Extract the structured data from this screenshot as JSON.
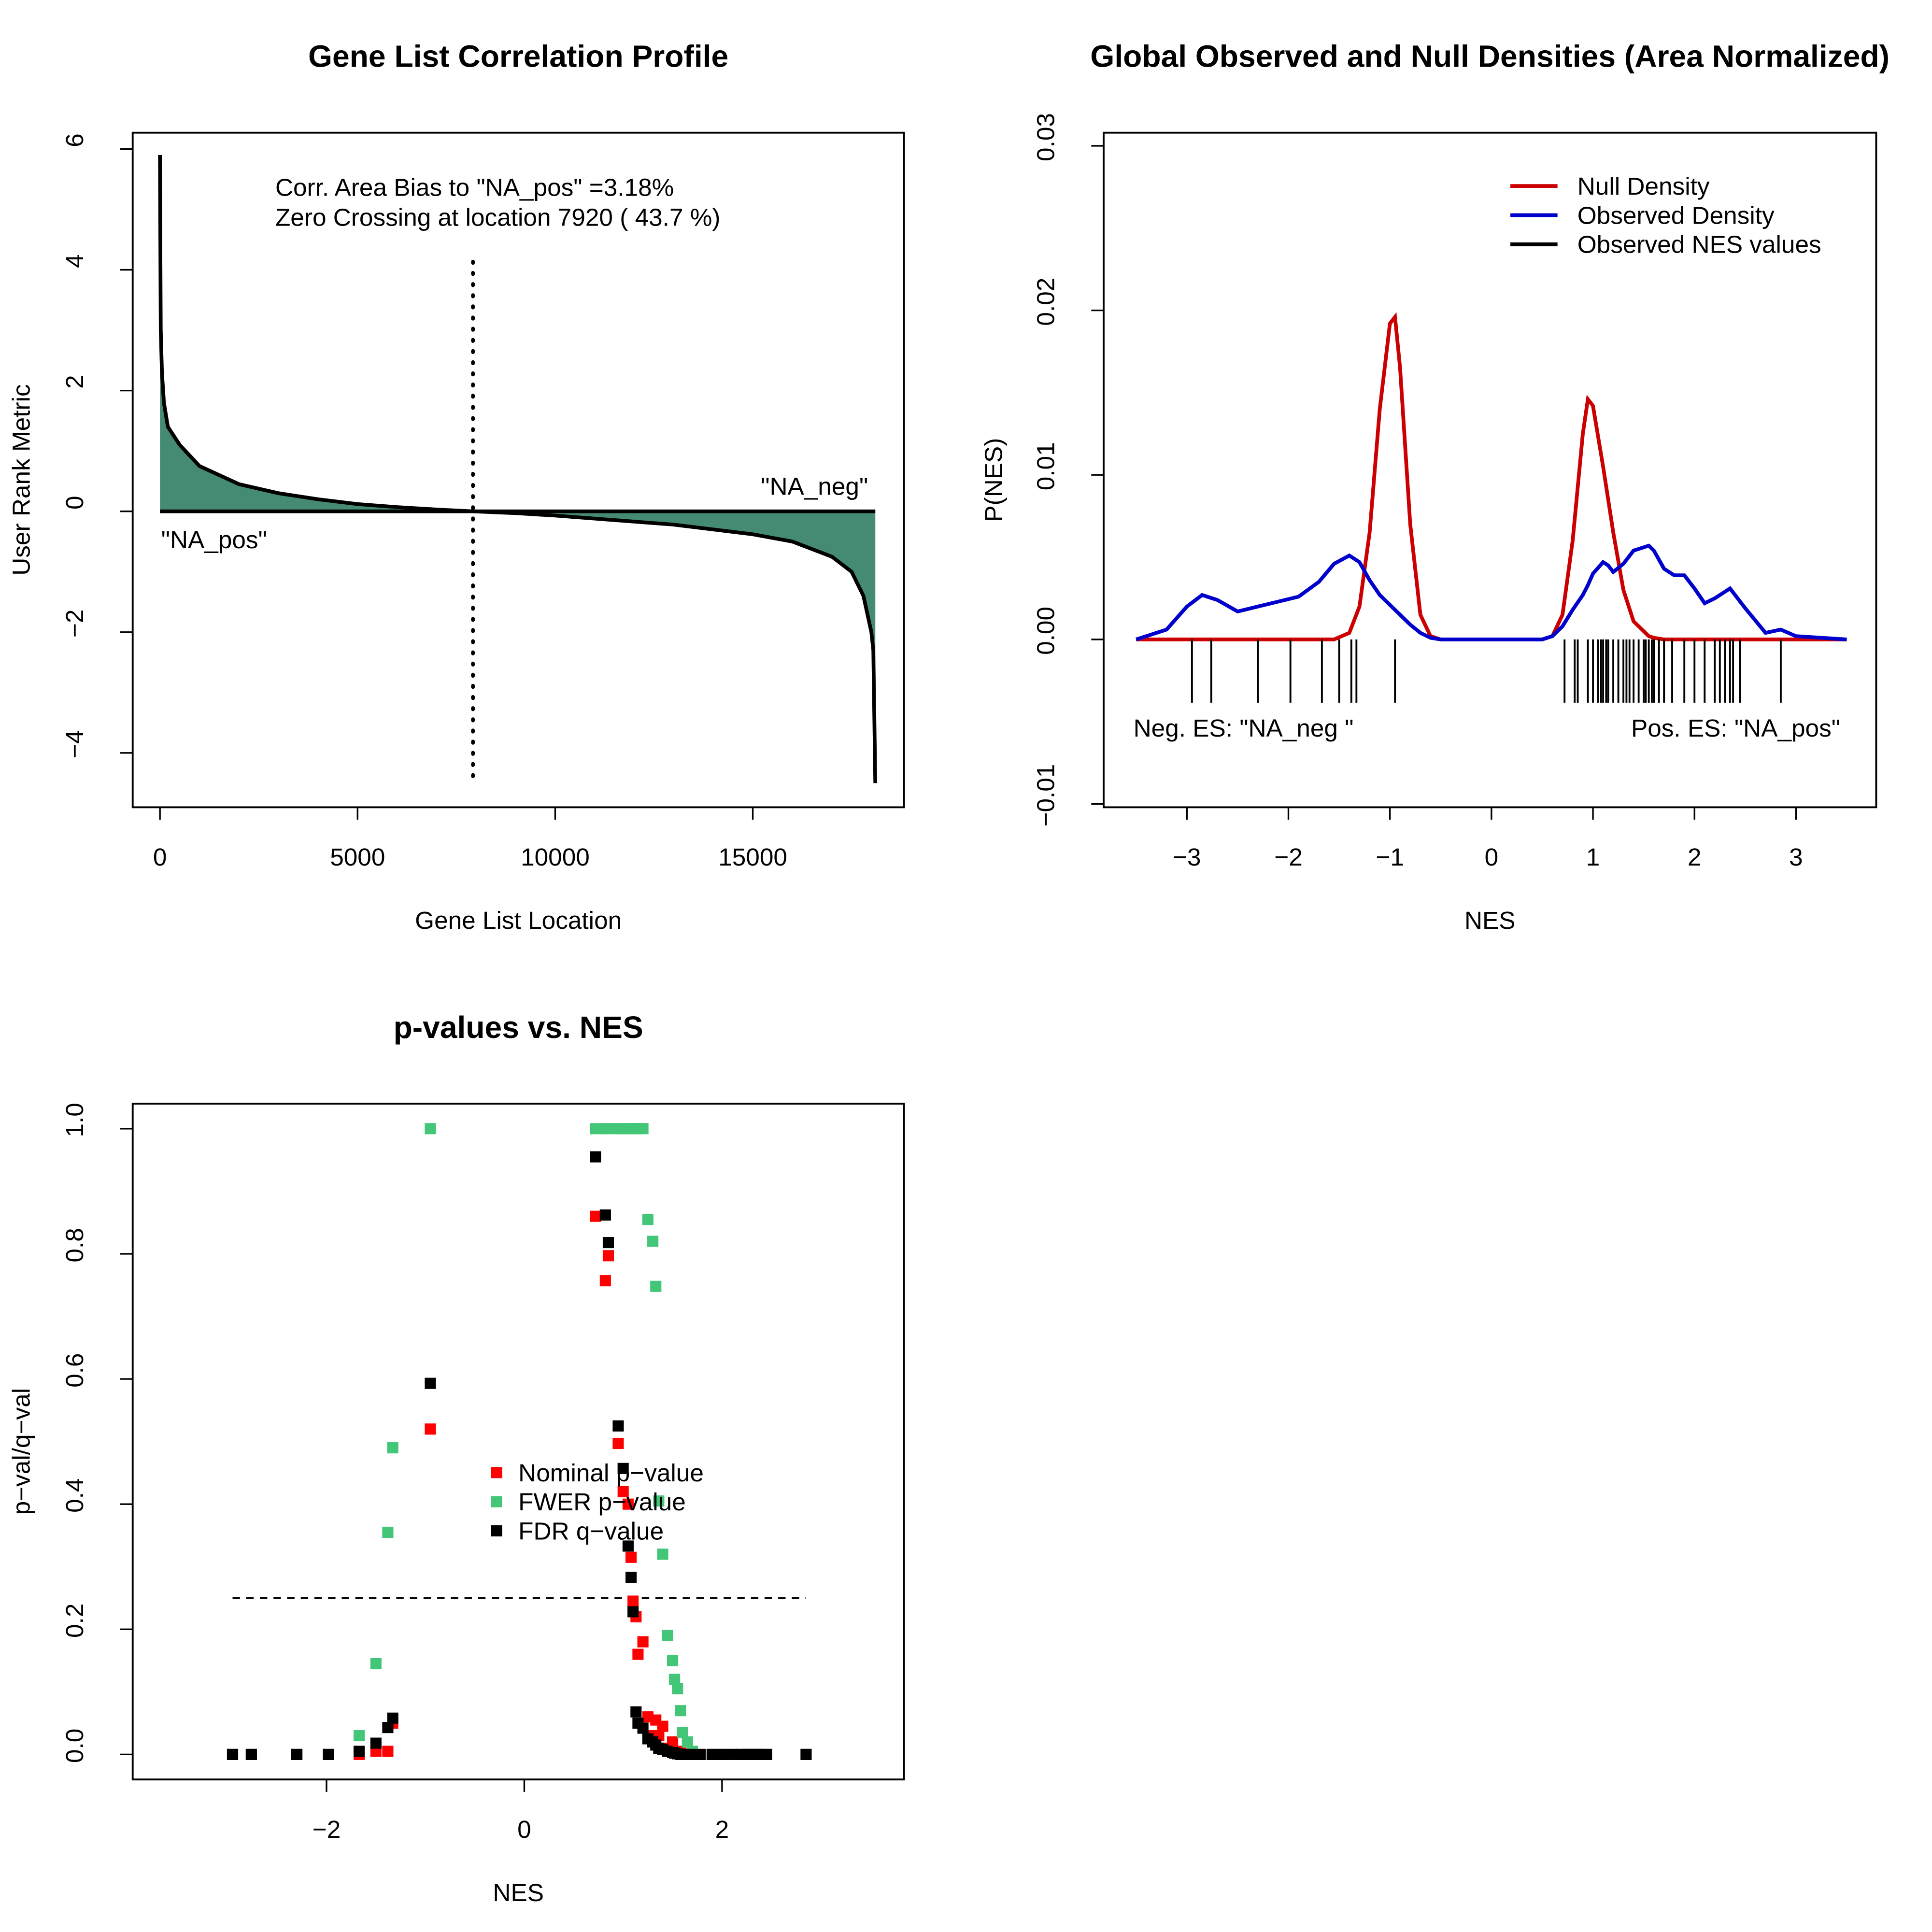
{
  "chart_data": [
    {
      "type": "area",
      "title": "Gene List Correlation Profile",
      "x_label": "Gene List Location",
      "y_label": "User Rank Metric",
      "x": [
        0,
        20,
        50,
        100,
        200,
        500,
        1000,
        2000,
        3000,
        4000,
        5000,
        6000,
        7000,
        7920,
        9000,
        10000,
        11000,
        12000,
        13000,
        14000,
        15000,
        16000,
        17000,
        17500,
        17800,
        18000,
        18050,
        18100
      ],
      "values": [
        5.9,
        3.0,
        2.3,
        1.8,
        1.4,
        1.1,
        0.75,
        0.45,
        0.3,
        0.2,
        0.12,
        0.07,
        0.03,
        0,
        -0.03,
        -0.07,
        -0.12,
        -0.17,
        -0.22,
        -0.3,
        -0.38,
        -0.5,
        -0.75,
        -1.0,
        -1.4,
        -2.0,
        -2.3,
        -4.5
      ],
      "color": "#458b74",
      "line_color": "#000000",
      "vline": 7920,
      "xlim": [
        -690,
        18826
      ],
      "ylim": [
        -4.9,
        6.27
      ],
      "xticks": [
        0,
        5000,
        10000,
        15000
      ],
      "yticks": [
        {
          "value": -4,
          "label": "−4"
        },
        {
          "value": -2,
          "label": "−2"
        },
        0,
        2,
        4,
        6
      ],
      "annotations": [
        "Corr. Area Bias to \"NA_pos\" =3.18%",
        "Zero Crossing at location  7920  ( 43.7  %)",
        "\"NA_neg\"",
        "\"NA_pos\""
      ]
    },
    {
      "type": "line",
      "title": "Global Observed and Null Densities (Area Normalized)",
      "x_label": "NES",
      "y_label": "P(NES)",
      "x": [
        -3.5,
        -3.2,
        -3.0,
        -2.85,
        -2.7,
        -2.5,
        -2.3,
        -2.1,
        -1.9,
        -1.7,
        -1.55,
        -1.4,
        -1.3,
        -1.2,
        -1.1,
        -1.0,
        -0.95,
        -0.9,
        -0.8,
        -0.7,
        -0.6,
        -0.5,
        -0.3,
        0,
        0.3,
        0.5,
        0.6,
        0.7,
        0.8,
        0.9,
        0.95,
        1.0,
        1.1,
        1.15,
        1.2,
        1.3,
        1.4,
        1.55,
        1.6,
        1.7,
        1.8,
        1.9,
        2.0,
        2.1,
        2.2,
        2.35,
        2.5,
        2.7,
        2.85,
        3.0,
        3.5
      ],
      "series": [
        {
          "name": "Null Density",
          "color": "#cc0000",
          "values": [
            0,
            0,
            0,
            0,
            0,
            0,
            0,
            0,
            0,
            0,
            0,
            0.0004,
            0.002,
            0.0065,
            0.014,
            0.0192,
            0.0196,
            0.0165,
            0.007,
            0.0015,
            0.0002,
            0,
            0,
            0,
            0,
            0,
            0.0002,
            0.0015,
            0.006,
            0.0125,
            0.0146,
            0.0142,
            0.0105,
            0.0085,
            0.0065,
            0.003,
            0.0011,
            0.0002,
            0.0001,
            0,
            0,
            0,
            0,
            0,
            0,
            0,
            0,
            0,
            0,
            0,
            0
          ]
        },
        {
          "name": "Observed Density",
          "color": "#0000cc",
          "values": [
            0,
            0.0006,
            0.002,
            0.0027,
            0.0024,
            0.0017,
            0.002,
            0.0023,
            0.0026,
            0.0035,
            0.0046,
            0.0051,
            0.0047,
            0.0036,
            0.0027,
            0.0021,
            0.0018,
            0.0015,
            0.0009,
            0.0004,
            0.0001,
            0,
            0,
            0,
            0,
            0,
            0.0002,
            0.0008,
            0.0018,
            0.0027,
            0.0033,
            0.004,
            0.0047,
            0.0045,
            0.0041,
            0.0046,
            0.0054,
            0.0057,
            0.0054,
            0.0043,
            0.0039,
            0.0039,
            0.0031,
            0.0022,
            0.0025,
            0.0031,
            0.0019,
            0.0004,
            0.0006,
            0.0002,
            0
          ]
        }
      ],
      "rug": {
        "name": "Observed NES values",
        "color": "#000000",
        "values": [
          -2.95,
          -2.76,
          -2.3,
          -1.98,
          -1.67,
          -1.5,
          -1.38,
          -1.33,
          -0.95,
          0.72,
          0.82,
          0.85,
          0.95,
          1.0,
          1.05,
          1.08,
          1.1,
          1.13,
          1.15,
          1.2,
          1.25,
          1.3,
          1.33,
          1.36,
          1.4,
          1.45,
          1.5,
          1.52,
          1.55,
          1.58,
          1.6,
          1.65,
          1.7,
          1.78,
          1.9,
          2.0,
          2.1,
          2.2,
          2.25,
          2.3,
          2.35,
          2.38,
          2.45,
          2.85
        ]
      },
      "xlim": [
        -3.82,
        3.79
      ],
      "ylim": [
        -0.0102,
        0.0308
      ],
      "xticks": [
        {
          "value": -3,
          "label": "−3"
        },
        {
          "value": -2,
          "label": "−2"
        },
        {
          "value": -1,
          "label": "−1"
        },
        0,
        1,
        2,
        3
      ],
      "yticks": [
        {
          "value": -0.01,
          "label": "−0.01"
        },
        {
          "value": 0,
          "label": "0.00"
        },
        0.01,
        0.02,
        0.03
      ],
      "legend": "topright",
      "annotations": [
        "Neg. ES: \"NA_neg \"",
        "Pos. ES: \"NA_pos\""
      ]
    },
    {
      "type": "scatter",
      "title": "p-values vs. NES",
      "x_label": "NES",
      "y_label": "p−val/q−val",
      "x": [
        -2.95,
        -2.76,
        -2.3,
        -1.98,
        -1.67,
        -1.5,
        -1.38,
        -1.33,
        -0.95,
        0.72,
        0.82,
        0.85,
        0.95,
        1.0,
        1.05,
        1.08,
        1.1,
        1.13,
        1.15,
        1.2,
        1.25,
        1.3,
        1.33,
        1.36,
        1.4,
        1.45,
        1.5,
        1.52,
        1.55,
        1.58,
        1.6,
        1.65,
        1.7,
        1.78,
        1.9,
        2.0,
        2.1,
        2.2,
        2.25,
        2.3,
        2.35,
        2.38,
        2.45,
        2.85
      ],
      "series": [
        {
          "name": "Nominal p−value",
          "color": "#ff0000",
          "values": [
            0,
            0,
            0,
            0,
            0,
            0.005,
            0.005,
            0.05,
            0.52,
            0.86,
            0.757,
            0.797,
            0.497,
            0.42,
            0.4,
            0.315,
            0.245,
            0.22,
            0.16,
            0.18,
            0.06,
            0.03,
            0.055,
            0.03,
            0.045,
            0.01,
            0.02,
            0.005,
            0.005,
            0.002,
            0.001,
            0,
            0,
            0,
            0,
            0,
            0,
            0,
            0,
            0,
            0,
            0,
            0,
            0
          ]
        },
        {
          "name": "FWER p−value",
          "color": "#43c678",
          "values": [
            0,
            0,
            0,
            0,
            0.03,
            0.145,
            0.355,
            0.49,
            1.0,
            1,
            1,
            1,
            1,
            1,
            1,
            1,
            1,
            1,
            1,
            1,
            0.855,
            0.82,
            0.748,
            0.405,
            0.32,
            0.19,
            0.15,
            0.12,
            0.105,
            0.07,
            0.035,
            0.02,
            0.005,
            0,
            0,
            0,
            0,
            0,
            0,
            0,
            0,
            0,
            0,
            0
          ]
        },
        {
          "name": "FDR q−value",
          "color": "#000000",
          "values": [
            0,
            0,
            0,
            0,
            0.005,
            0.018,
            0.043,
            0.058,
            0.593,
            0.955,
            0.862,
            0.818,
            0.525,
            0.457,
            0.333,
            0.283,
            0.228,
            0.068,
            0.05,
            0.042,
            0.025,
            0.02,
            0.015,
            0.01,
            0.008,
            0.005,
            0.003,
            0.002,
            0.001,
            0,
            0,
            0,
            0,
            0,
            0,
            0,
            0,
            0,
            0,
            0,
            0,
            0,
            0,
            0
          ]
        }
      ],
      "hline": 0.25,
      "xlim": [
        -3.96,
        3.84
      ],
      "ylim": [
        -0.04,
        1.04
      ],
      "xticks": [
        {
          "value": -2,
          "label": "−2"
        },
        0,
        2
      ],
      "yticks": [
        {
          "value": 0,
          "label": "0.0"
        },
        {
          "value": 0.2,
          "label": "0.2"
        },
        {
          "value": 0.4,
          "label": "0.4"
        },
        {
          "value": 0.6,
          "label": "0.6"
        },
        {
          "value": 0.8,
          "label": "0.8"
        },
        {
          "value": 1,
          "label": "1.0"
        }
      ],
      "legend": "center"
    }
  ]
}
